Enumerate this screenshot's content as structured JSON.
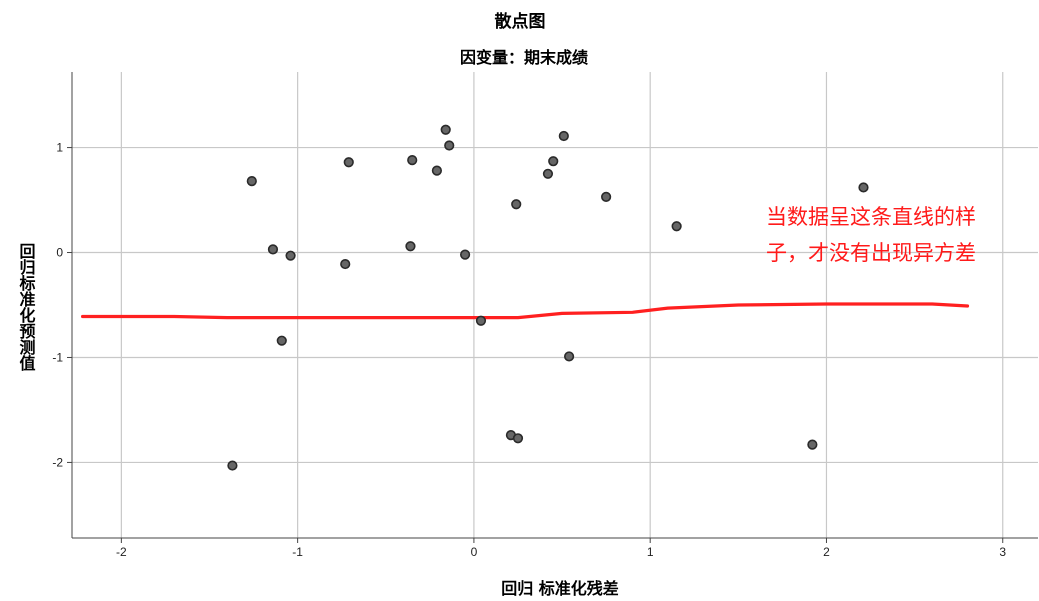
{
  "chart_data": {
    "type": "scatter",
    "title": "散点图",
    "subtitle": "因变量：期末成绩",
    "xlabel": "回归 标准化残差",
    "ylabel": "回归标准化预测值",
    "xlim": [
      -2.28,
      3.2
    ],
    "ylim": [
      -2.72,
      1.72
    ],
    "xticks": [
      -2,
      -1,
      0,
      1,
      2,
      3
    ],
    "yticks": [
      -2,
      -1,
      0,
      1
    ],
    "xtick_labels": [
      "-2",
      "-1",
      "0",
      "1",
      "2",
      "3"
    ],
    "ytick_labels": [
      "-2",
      "-1",
      "0",
      "1"
    ],
    "grid": true,
    "points": [
      {
        "x": -1.26,
        "y": 0.68
      },
      {
        "x": -1.14,
        "y": 0.03
      },
      {
        "x": -1.04,
        "y": -0.03
      },
      {
        "x": -1.09,
        "y": -0.84
      },
      {
        "x": -1.37,
        "y": -2.03
      },
      {
        "x": -0.71,
        "y": 0.86
      },
      {
        "x": -0.73,
        "y": -0.11
      },
      {
        "x": -0.35,
        "y": 0.88
      },
      {
        "x": -0.36,
        "y": 0.06
      },
      {
        "x": -0.21,
        "y": 0.78
      },
      {
        "x": -0.16,
        "y": 1.17
      },
      {
        "x": -0.14,
        "y": 1.02
      },
      {
        "x": -0.05,
        "y": -0.02
      },
      {
        "x": 0.04,
        "y": -0.65
      },
      {
        "x": 0.24,
        "y": 0.46
      },
      {
        "x": 0.21,
        "y": -1.74
      },
      {
        "x": 0.25,
        "y": -1.77
      },
      {
        "x": 0.42,
        "y": 0.75
      },
      {
        "x": 0.45,
        "y": 0.87
      },
      {
        "x": 0.51,
        "y": 1.11
      },
      {
        "x": 0.54,
        "y": -0.99
      },
      {
        "x": 0.75,
        "y": 0.53
      },
      {
        "x": 1.15,
        "y": 0.25
      },
      {
        "x": 1.92,
        "y": -1.83
      },
      {
        "x": 2.21,
        "y": 0.62
      }
    ],
    "annotation": {
      "lines": [
        "当数据呈这条直线的样",
        "子，才没有出现异方差"
      ],
      "color": "#ff1a1a"
    },
    "annotation_line": {
      "color": "#ff2020",
      "points": [
        [
          -2.22,
          -0.61
        ],
        [
          -1.7,
          -0.61
        ],
        [
          -1.4,
          -0.62
        ],
        [
          -0.8,
          -0.62
        ],
        [
          -0.3,
          -0.62
        ],
        [
          0.25,
          -0.62
        ],
        [
          0.5,
          -0.58
        ],
        [
          0.9,
          -0.57
        ],
        [
          1.1,
          -0.53
        ],
        [
          1.5,
          -0.5
        ],
        [
          2.0,
          -0.49
        ],
        [
          2.6,
          -0.49
        ],
        [
          2.8,
          -0.51
        ]
      ]
    },
    "colors": {
      "point_fill": "#666666",
      "point_stroke": "#2a2a2a",
      "grid": "#c8c8c8",
      "axis": "#444444"
    }
  }
}
